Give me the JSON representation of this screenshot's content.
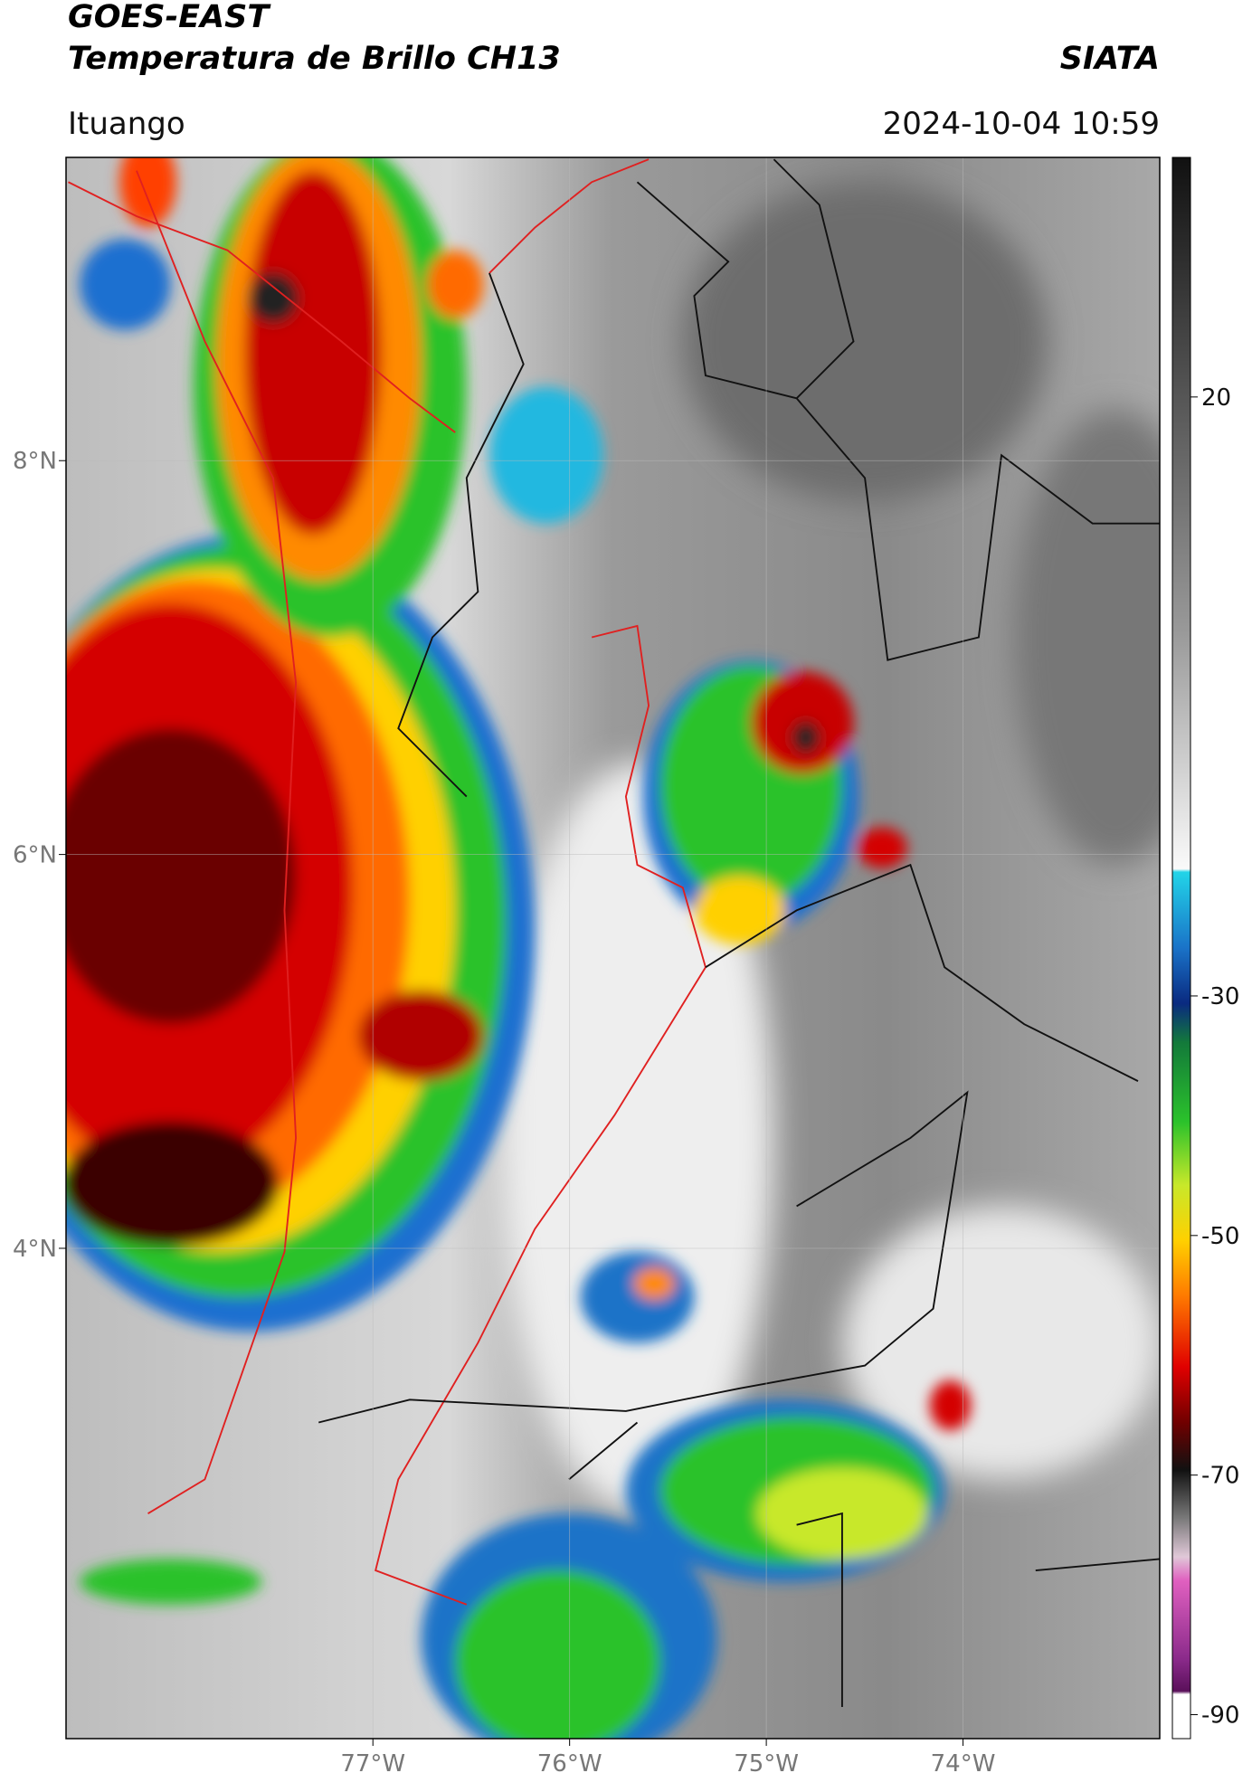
{
  "header": {
    "title_line1": "GOES-EAST",
    "title_line2": "Temperatura de Brillo CH13",
    "source": "SIATA",
    "region": "Ituango",
    "timestamp": "2024-10-04 10:59"
  },
  "map": {
    "xlim": [
      -78.56,
      -73.0
    ],
    "ylim": [
      1.51,
      9.54
    ],
    "xticks": [
      {
        "value": -77,
        "label": "77°W"
      },
      {
        "value": -76,
        "label": "76°W"
      },
      {
        "value": -75,
        "label": "75°W"
      },
      {
        "value": -74,
        "label": "74°W"
      }
    ],
    "yticks": [
      {
        "value": 4,
        "label": "4°N"
      },
      {
        "value": 6,
        "label": "6°N"
      },
      {
        "value": 8,
        "label": "8°N"
      }
    ]
  },
  "colorbar": {
    "lim": [
      -92,
      40
    ],
    "ticks": [
      20,
      -30,
      -50,
      -70,
      -90
    ]
  }
}
